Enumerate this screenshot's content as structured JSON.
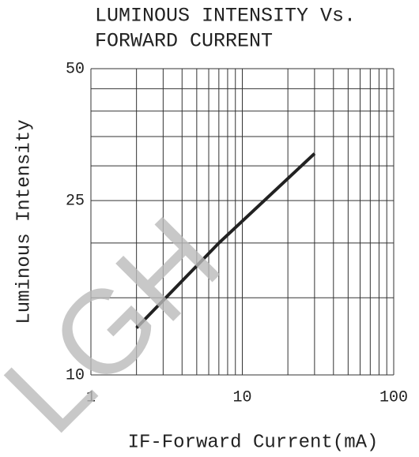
{
  "chart_data": {
    "type": "line",
    "title": [
      "LUMINOUS INTENSITY Vs.",
      "FORWARD CURRENT"
    ],
    "x_label": "IF-Forward Current(mA)",
    "y_label": "Luminous Intensity",
    "annotation": "LGH",
    "x": [
      2,
      7,
      30
    ],
    "series": [
      {
        "name": "Luminous Intensity",
        "color": "#222222",
        "values": [
          12.8,
          20,
          32
        ]
      }
    ],
    "xlim": [
      1,
      100
    ],
    "xticks": [
      1,
      10,
      100
    ],
    "xminor": [
      2,
      3,
      4,
      5,
      6,
      7,
      8,
      9,
      20,
      30,
      40,
      50,
      60,
      70,
      80,
      90
    ],
    "ylim": [
      10,
      50
    ],
    "yticks": [
      10,
      25,
      50
    ],
    "yminor": [
      15,
      20,
      30,
      35,
      40,
      45
    ],
    "xlog": true,
    "ylog": true,
    "grid": true
  }
}
